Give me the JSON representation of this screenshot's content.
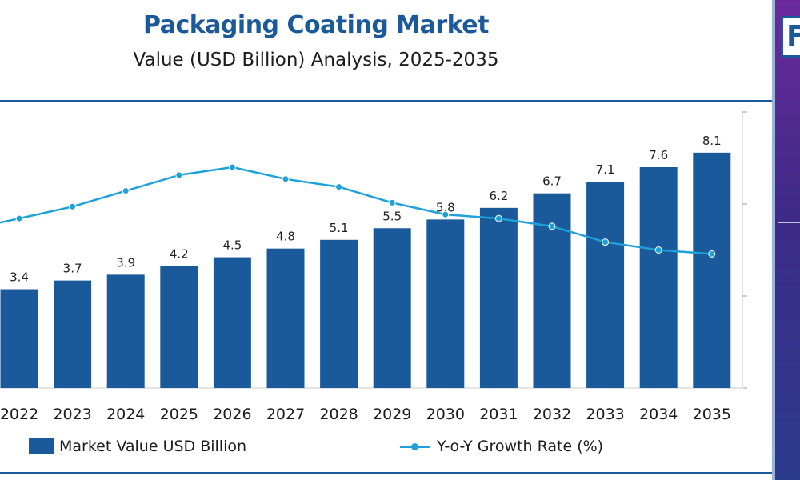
{
  "header": {
    "title": "Packaging Coating Market",
    "subtitle": "Value (USD Billion) Analysis, 2025-2035",
    "logo_text": "F"
  },
  "legend": {
    "bar_label": "Market Value USD Billion",
    "line_label": "Y-o-Y Growth Rate (%)"
  },
  "colors": {
    "bar": "#1b5a9a",
    "line": "#1ea0d8",
    "title": "#1b5a9a"
  },
  "chart_data": {
    "type": "bar",
    "categories": [
      "2022",
      "2023",
      "2024",
      "2025",
      "2026",
      "2027",
      "2028",
      "2029",
      "2030",
      "2031",
      "2032",
      "2033",
      "2034",
      "2035"
    ],
    "series": [
      {
        "name": "Market Value USD Billion",
        "type": "bar",
        "values": [
          3.4,
          3.7,
          3.9,
          4.2,
          4.5,
          4.8,
          5.1,
          5.5,
          5.8,
          6.2,
          6.7,
          7.1,
          7.6,
          8.1
        ],
        "labels": [
          "3.4",
          "3.7",
          "3.9",
          "4.2",
          "4.5",
          "4.8",
          "5.1",
          "5.5",
          "5.8",
          "6.2",
          "6.7",
          "7.1",
          "7.6",
          "8.1"
        ]
      },
      {
        "name": "Y-o-Y Growth Rate (%)",
        "type": "line",
        "values": [
          7.3,
          7.6,
          8.0,
          8.4,
          8.6,
          8.3,
          8.1,
          7.7,
          7.4,
          7.3,
          7.1,
          6.7,
          6.5,
          6.4
        ],
        "ylim": [
          3,
          10
        ]
      }
    ],
    "ylim": [
      0,
      9.5
    ],
    "grid": false,
    "legend_position": "bottom"
  }
}
